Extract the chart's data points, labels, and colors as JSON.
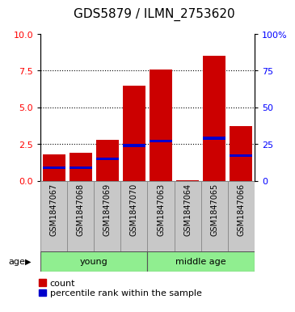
{
  "title": "GDS5879 / ILMN_2753620",
  "samples": [
    "GSM1847067",
    "GSM1847068",
    "GSM1847069",
    "GSM1847070",
    "GSM1847063",
    "GSM1847064",
    "GSM1847065",
    "GSM1847066"
  ],
  "red_values": [
    1.8,
    1.9,
    2.8,
    6.5,
    7.6,
    0.05,
    8.5,
    3.7
  ],
  "blue_values": [
    0.9,
    0.9,
    1.5,
    2.4,
    2.7,
    0.0,
    2.9,
    1.7
  ],
  "groups": [
    {
      "label": "young",
      "start": 0,
      "end": 4
    },
    {
      "label": "middle age",
      "start": 4,
      "end": 8
    }
  ],
  "ylim_left": [
    0,
    10
  ],
  "ylim_right": [
    0,
    100
  ],
  "yticks_left": [
    0,
    2.5,
    5.0,
    7.5,
    10
  ],
  "yticks_right": [
    0,
    25,
    50,
    75,
    100
  ],
  "ytick_labels_right": [
    "0",
    "25",
    "50",
    "75",
    "100%"
  ],
  "bar_color": "#CC0000",
  "blue_color": "#0000CC",
  "bar_width": 0.85,
  "blue_bar_height": 0.18,
  "tick_area_bg": "#C8C8C8",
  "legend_count_label": "count",
  "legend_pct_label": "percentile rank within the sample",
  "age_label": "age",
  "title_fontsize": 11,
  "axis_fontsize": 8,
  "sample_fontsize": 7,
  "legend_fontsize": 8
}
